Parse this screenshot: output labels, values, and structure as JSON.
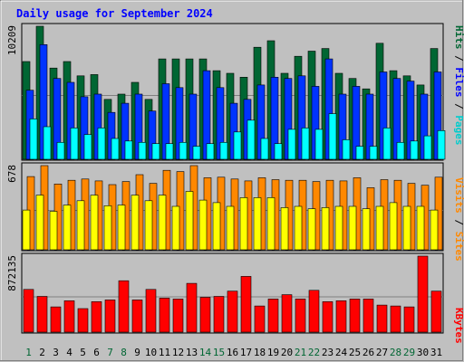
{
  "title": "Daily usage for September 2024",
  "colors": {
    "background": "#c0c0c0",
    "frame": "#808080",
    "title_text": "#0000ff",
    "hits": "#006633",
    "files": "#0033ff",
    "pages": "#00ffff",
    "visits": "#ff8800",
    "sites": "#ffff00",
    "kbytes": "#ff0000",
    "weekend_day": "#006633",
    "weekday": "#0000ff"
  },
  "right_labels": {
    "top": [
      {
        "text": "Hits",
        "color": "#006633"
      },
      {
        "text": " / ",
        "color": "#000000"
      },
      {
        "text": "Files",
        "color": "#0000ff"
      },
      {
        "text": " / ",
        "color": "#000000"
      },
      {
        "text": "Pages",
        "color": "#00cccc"
      }
    ],
    "middle": [
      {
        "text": "Visits",
        "color": "#ff8800"
      },
      {
        "text": " / ",
        "color": "#000000"
      },
      {
        "text": "Sites",
        "color": "#ff8800"
      }
    ],
    "bottom": [
      {
        "text": "KBytes",
        "color": "#ff0000"
      }
    ]
  },
  "chart_data": [
    {
      "type": "bar",
      "panel": "hits-files-pages",
      "ylabel": "10209",
      "ymax": 10209,
      "categories": [
        "1",
        "2",
        "3",
        "4",
        "5",
        "6",
        "7",
        "8",
        "9",
        "10",
        "11",
        "12",
        "13",
        "14",
        "15",
        "16",
        "17",
        "18",
        "19",
        "20",
        "21",
        "22",
        "23",
        "24",
        "25",
        "26",
        "27",
        "28",
        "29",
        "30",
        "31"
      ],
      "series": [
        {
          "name": "Hits",
          "color": "#006633",
          "values": [
            7500,
            10209,
            7000,
            7500,
            6400,
            6500,
            4600,
            5000,
            5900,
            4600,
            7700,
            7700,
            7700,
            7700,
            6800,
            6600,
            6300,
            8600,
            9100,
            6600,
            7900,
            8300,
            8500,
            6600,
            6200,
            5400,
            8900,
            6800,
            6400,
            5700,
            8500
          ]
        },
        {
          "name": "Files",
          "color": "#0033ff",
          "values": [
            5300,
            8800,
            6200,
            5900,
            4800,
            5000,
            3600,
            4300,
            5000,
            3700,
            5800,
            5500,
            5000,
            6800,
            5500,
            4300,
            4600,
            5700,
            6300,
            6200,
            6400,
            5600,
            7700,
            5000,
            5600,
            5000,
            6700,
            6200,
            6000,
            5000,
            6700
          ]
        },
        {
          "name": "Pages",
          "color": "#00ffff",
          "values": [
            3100,
            2500,
            1300,
            2400,
            1900,
            2400,
            1600,
            1400,
            1300,
            1200,
            1200,
            1300,
            1000,
            1200,
            1300,
            2100,
            3000,
            1600,
            1200,
            2300,
            2400,
            2300,
            3500,
            1500,
            1000,
            1000,
            2400,
            1300,
            1400,
            1800,
            2200
          ]
        }
      ]
    },
    {
      "type": "bar",
      "panel": "visits-sites",
      "ylabel": "678",
      "ymax": 678,
      "categories": [
        "1",
        "2",
        "3",
        "4",
        "5",
        "6",
        "7",
        "8",
        "9",
        "10",
        "11",
        "12",
        "13",
        "14",
        "15",
        "16",
        "17",
        "18",
        "19",
        "20",
        "21",
        "22",
        "23",
        "24",
        "25",
        "26",
        "27",
        "28",
        "29",
        "30",
        "31"
      ],
      "series": [
        {
          "name": "Visits",
          "color": "#ff8800",
          "values": [
            590,
            678,
            530,
            560,
            570,
            555,
            525,
            550,
            605,
            535,
            640,
            630,
            678,
            580,
            585,
            570,
            555,
            580,
            565,
            560,
            560,
            550,
            560,
            555,
            580,
            500,
            565,
            560,
            535,
            520,
            585
          ]
        },
        {
          "name": "Sites",
          "color": "#ffff00",
          "values": [
            320,
            440,
            310,
            360,
            395,
            440,
            355,
            360,
            440,
            395,
            440,
            350,
            470,
            400,
            380,
            350,
            420,
            420,
            420,
            340,
            350,
            330,
            340,
            350,
            350,
            330,
            350,
            380,
            350,
            350,
            320
          ]
        }
      ]
    },
    {
      "type": "bar",
      "panel": "kbytes",
      "ylabel": "872135",
      "ymax": 872135,
      "categories": [
        "1",
        "2",
        "3",
        "4",
        "5",
        "6",
        "7",
        "8",
        "9",
        "10",
        "11",
        "12",
        "13",
        "14",
        "15",
        "16",
        "17",
        "18",
        "19",
        "20",
        "21",
        "22",
        "23",
        "24",
        "25",
        "26",
        "27",
        "28",
        "29",
        "30",
        "31"
      ],
      "series": [
        {
          "name": "KBytes",
          "color": "#ff0000",
          "values": [
            490000,
            410000,
            290000,
            360000,
            270000,
            350000,
            370000,
            590000,
            370000,
            490000,
            390000,
            380000,
            560000,
            400000,
            410000,
            470000,
            640000,
            300000,
            380000,
            430000,
            380000,
            480000,
            350000,
            360000,
            380000,
            380000,
            310000,
            300000,
            290000,
            872135,
            470000
          ]
        }
      ]
    }
  ],
  "x_axis": {
    "days": [
      "1",
      "2",
      "3",
      "4",
      "5",
      "6",
      "7",
      "8",
      "9",
      "10",
      "11",
      "12",
      "13",
      "14",
      "15",
      "16",
      "17",
      "18",
      "19",
      "20",
      "21",
      "22",
      "23",
      "24",
      "25",
      "26",
      "27",
      "28",
      "29",
      "30",
      "31"
    ],
    "weekend_days": [
      "1",
      "7",
      "8",
      "14",
      "15",
      "21",
      "22",
      "28",
      "29"
    ]
  }
}
